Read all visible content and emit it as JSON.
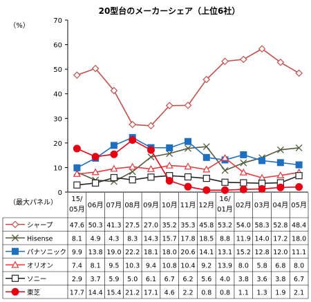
{
  "chart_data": {
    "type": "line",
    "title": "20型台のメーカーシェア（上位6社）",
    "ylabel": "（%）",
    "ylim": [
      0,
      70
    ],
    "yticks": [
      0,
      10,
      20,
      30,
      40,
      50,
      60,
      70
    ],
    "grid": false,
    "legend_position": "table-left",
    "table_header": "（最大パネル）",
    "categories": [
      "15/05月",
      "06月",
      "07月",
      "08月",
      "09月",
      "10月",
      "11月",
      "12月",
      "16/01月",
      "02月",
      "03月",
      "04月",
      "05月"
    ],
    "category_lines": [
      [
        "15/",
        "05月"
      ],
      [
        "06月"
      ],
      [
        "07月"
      ],
      [
        "08月"
      ],
      [
        "09月"
      ],
      [
        "10月"
      ],
      [
        "11月"
      ],
      [
        "12月"
      ],
      [
        "16/",
        "01月"
      ],
      [
        "02月"
      ],
      [
        "03月"
      ],
      [
        "04月"
      ],
      [
        "05月"
      ]
    ],
    "series": [
      {
        "name": "シャープ",
        "color": "#c0504d",
        "marker": "diamond",
        "values": [
          47.6,
          50.3,
          41.3,
          27.5,
          27.0,
          35.2,
          35.3,
          45.8,
          53.2,
          54.0,
          58.3,
          52.8,
          48.4
        ]
      },
      {
        "name": "Hisense",
        "color": "#4f5b3a",
        "marker": "x",
        "values": [
          8.1,
          4.9,
          4.3,
          8.3,
          14.3,
          15.7,
          17.8,
          18.5,
          8.8,
          11.9,
          14.0,
          17.2,
          18.0
        ]
      },
      {
        "name": "パナソニック",
        "color": "#1f6fc0",
        "marker": "square",
        "values": [
          9.9,
          13.8,
          19.0,
          22.2,
          18.1,
          18.0,
          20.6,
          14.1,
          13.1,
          15.2,
          12.8,
          12.0,
          11.1
        ]
      },
      {
        "name": "オリオン",
        "color": "#e8383d",
        "marker": "triangle",
        "values": [
          7.4,
          8.1,
          9.5,
          10.3,
          9.4,
          10.8,
          10.4,
          9.2,
          13.9,
          8.0,
          5.8,
          6.8,
          8.0
        ]
      },
      {
        "name": "ソニー",
        "color": "#222222",
        "marker": "open-square",
        "values": [
          2.9,
          3.7,
          5.9,
          5.0,
          6.1,
          6.7,
          6.2,
          5.6,
          4.0,
          3.8,
          3.6,
          3.8,
          6.7
        ]
      },
      {
        "name": "東芝",
        "color": "#e60012",
        "marker": "circle",
        "values": [
          17.7,
          14.4,
          15.4,
          21.2,
          17.1,
          4.6,
          2.2,
          0.8,
          0.8,
          1.1,
          1.3,
          1.9,
          2.1
        ]
      }
    ]
  }
}
